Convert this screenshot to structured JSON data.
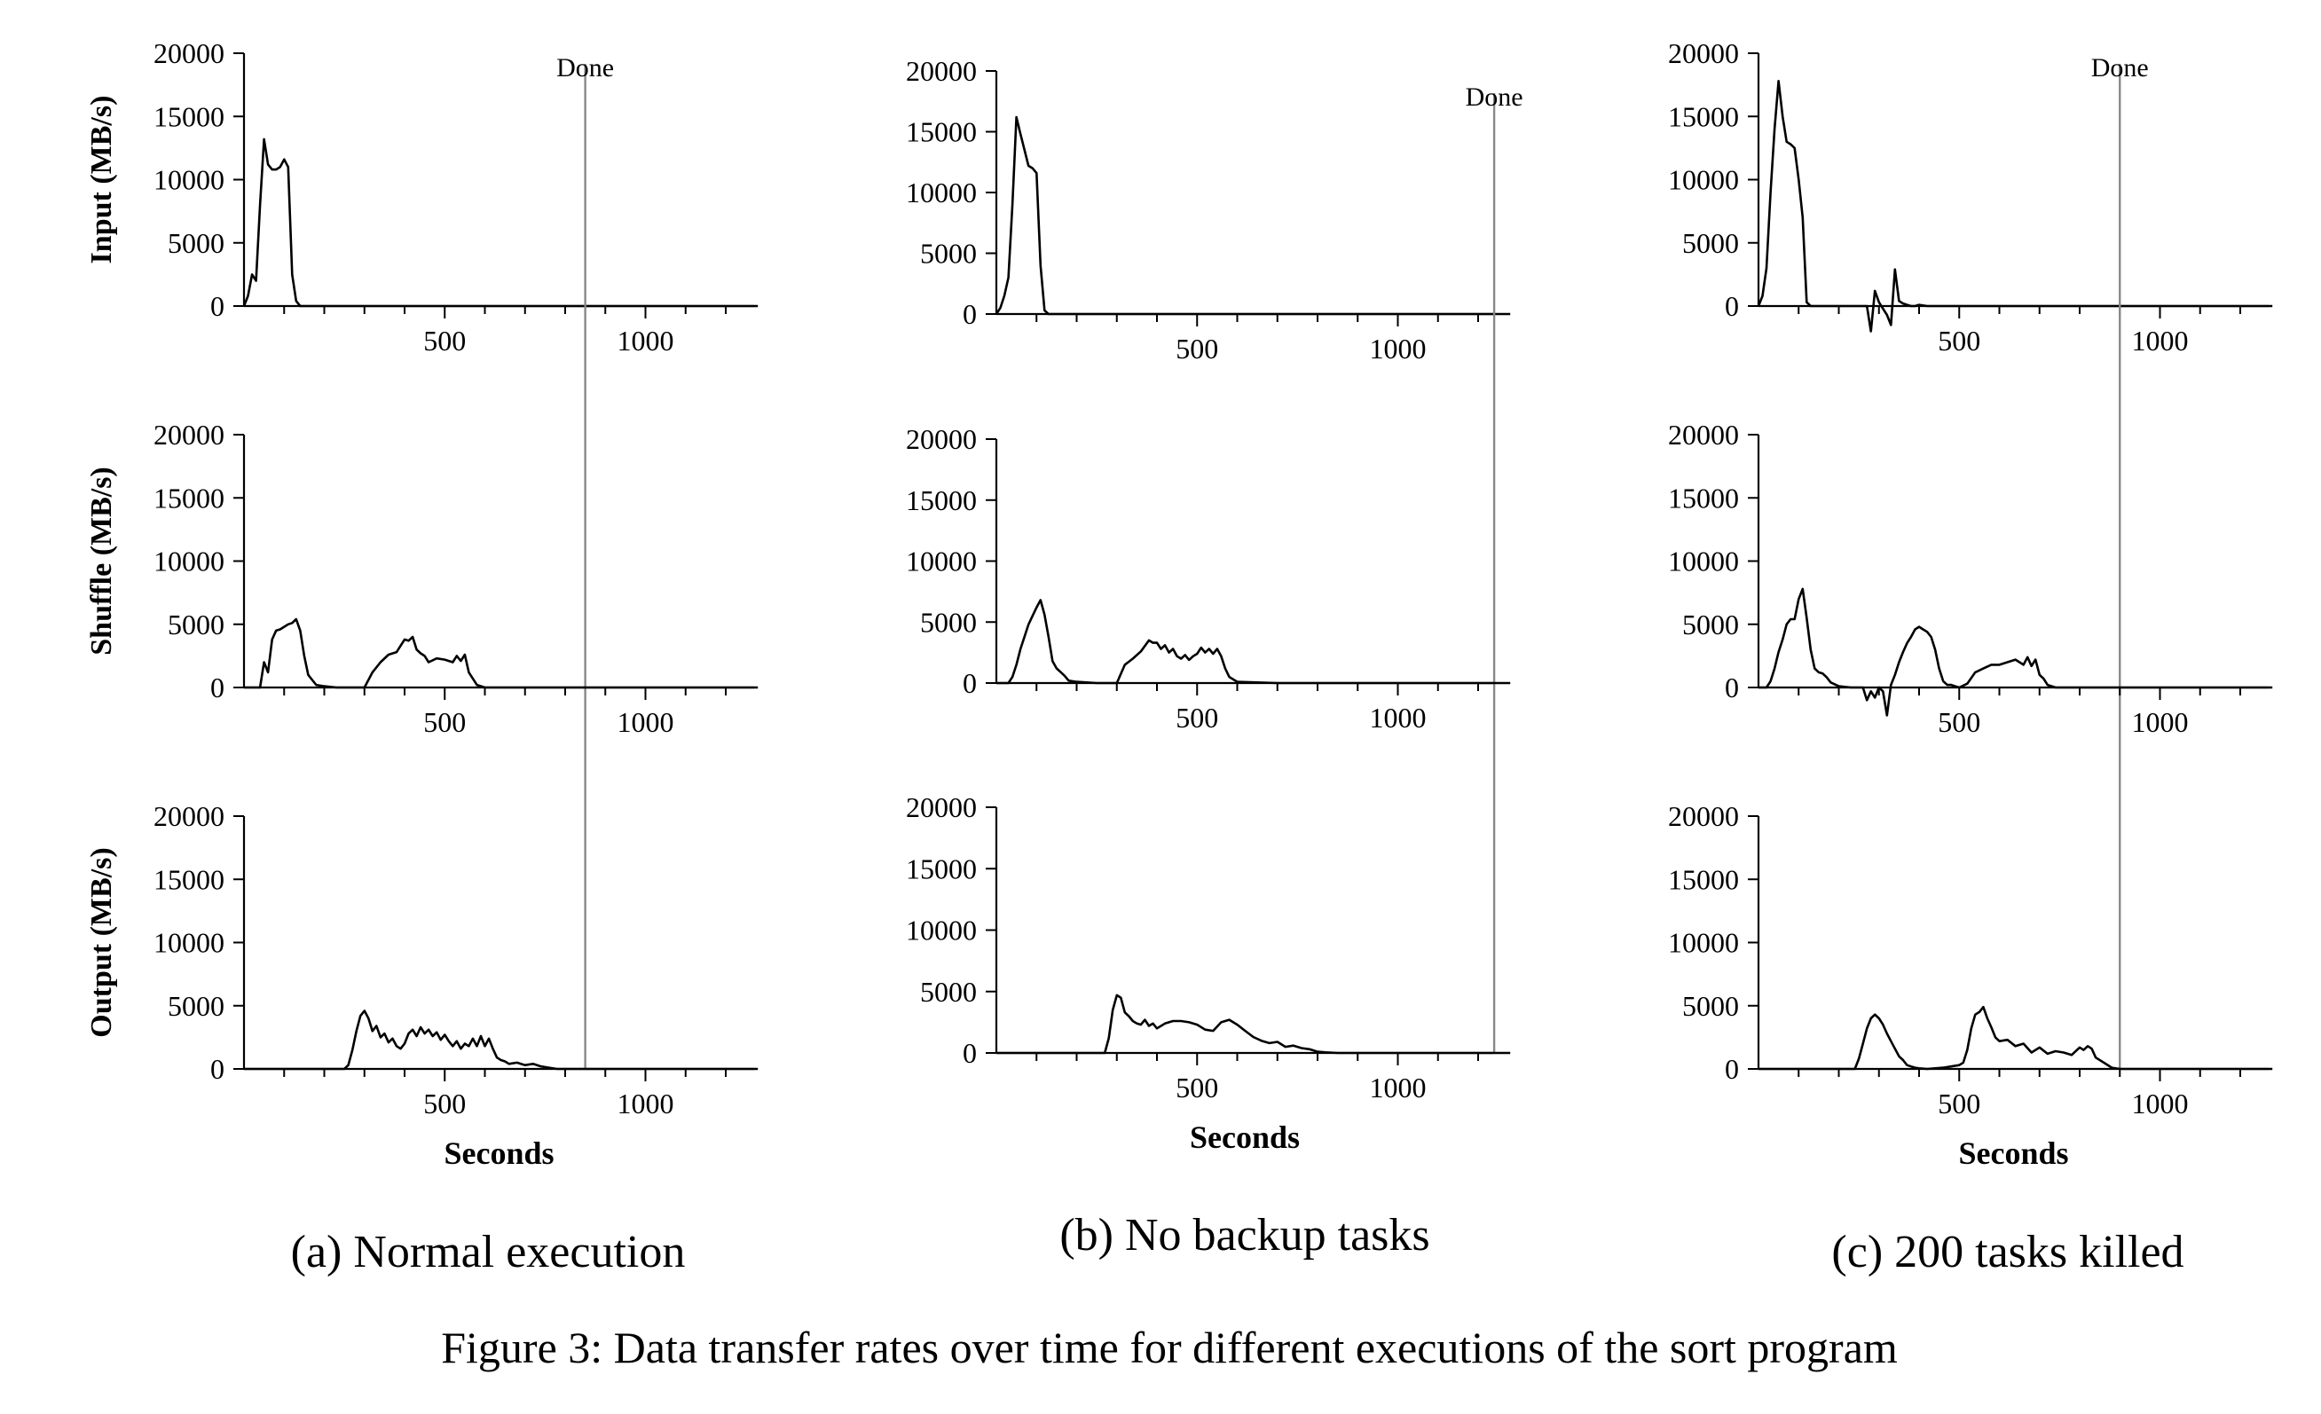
{
  "chart_data": [
    {
      "type": "line",
      "id": "a-input",
      "ylabel": "Input (MB/s)",
      "xlabel": "",
      "xlim": [
        0,
        1280
      ],
      "ylim": [
        0,
        20000
      ],
      "yticks": [
        0,
        5000,
        10000,
        15000,
        20000
      ],
      "xticks": [
        500,
        1000
      ],
      "done": 850,
      "done_label": "Done",
      "x": [
        0,
        10,
        20,
        30,
        40,
        50,
        60,
        70,
        80,
        90,
        100,
        110,
        120,
        130,
        140,
        150,
        170,
        200,
        300,
        500,
        800,
        1000,
        1280
      ],
      "values": [
        0,
        800,
        2500,
        2000,
        8000,
        13200,
        11200,
        10800,
        10800,
        11000,
        11600,
        11000,
        2500,
        400,
        0,
        0,
        0,
        0,
        0,
        0,
        0,
        0,
        0
      ]
    },
    {
      "type": "line",
      "id": "a-shuffle",
      "ylabel": "Shuffle (MB/s)",
      "xlabel": "",
      "xlim": [
        0,
        1280
      ],
      "ylim": [
        0,
        20000
      ],
      "yticks": [
        0,
        5000,
        10000,
        15000,
        20000
      ],
      "xticks": [
        500,
        1000
      ],
      "done": 850,
      "done_label": "",
      "x": [
        0,
        40,
        50,
        60,
        70,
        80,
        90,
        100,
        110,
        120,
        130,
        140,
        150,
        160,
        170,
        180,
        200,
        230,
        300,
        320,
        340,
        360,
        380,
        400,
        410,
        420,
        430,
        440,
        450,
        460,
        480,
        500,
        520,
        530,
        540,
        550,
        560,
        580,
        600,
        700,
        850,
        1000,
        1280
      ],
      "values": [
        0,
        0,
        2000,
        1200,
        3800,
        4500,
        4600,
        4800,
        5000,
        5100,
        5400,
        4500,
        2500,
        1000,
        600,
        200,
        100,
        0,
        0,
        1200,
        2000,
        2600,
        2800,
        3800,
        3700,
        4000,
        3000,
        2700,
        2500,
        2000,
        2300,
        2200,
        2000,
        2500,
        2100,
        2600,
        1200,
        200,
        0,
        0,
        0,
        0,
        0
      ]
    },
    {
      "type": "line",
      "id": "a-output",
      "ylabel": "Output (MB/s)",
      "xlabel": "Seconds",
      "xlim": [
        0,
        1280
      ],
      "ylim": [
        0,
        20000
      ],
      "yticks": [
        0,
        5000,
        10000,
        15000,
        20000
      ],
      "xticks": [
        500,
        1000
      ],
      "done": 850,
      "done_label": "",
      "x": [
        0,
        250,
        260,
        270,
        280,
        290,
        300,
        310,
        320,
        330,
        340,
        350,
        360,
        370,
        380,
        390,
        400,
        410,
        420,
        430,
        440,
        450,
        460,
        470,
        480,
        490,
        500,
        510,
        520,
        530,
        540,
        550,
        560,
        570,
        580,
        590,
        600,
        610,
        620,
        630,
        640,
        650,
        660,
        680,
        700,
        720,
        740,
        760,
        780,
        800,
        1000,
        1280
      ],
      "values": [
        0,
        0,
        300,
        1500,
        3000,
        4200,
        4600,
        4000,
        3000,
        3400,
        2500,
        2800,
        2100,
        2400,
        1800,
        1600,
        2000,
        2800,
        3100,
        2600,
        3300,
        2800,
        3100,
        2600,
        2900,
        2300,
        2700,
        2200,
        1800,
        2200,
        1600,
        2000,
        1800,
        2400,
        1800,
        2600,
        1800,
        2400,
        1600,
        900,
        700,
        600,
        400,
        500,
        300,
        400,
        200,
        100,
        0,
        0,
        0,
        0
      ]
    },
    {
      "type": "line",
      "id": "b-input",
      "ylabel": "",
      "xlabel": "",
      "xlim": [
        0,
        1280
      ],
      "ylim": [
        0,
        20000
      ],
      "yticks": [
        0,
        5000,
        10000,
        15000,
        20000
      ],
      "xticks": [
        500,
        1000
      ],
      "done": 1240,
      "done_label": "Done",
      "x": [
        0,
        10,
        20,
        30,
        40,
        50,
        60,
        70,
        80,
        90,
        100,
        110,
        120,
        130,
        150,
        300,
        600,
        1000,
        1280
      ],
      "values": [
        0,
        500,
        1500,
        3000,
        9000,
        16200,
        14800,
        13500,
        12200,
        12000,
        11600,
        4000,
        300,
        0,
        0,
        0,
        0,
        0,
        0
      ]
    },
    {
      "type": "line",
      "id": "b-shuffle",
      "ylabel": "",
      "xlabel": "",
      "xlim": [
        0,
        1280
      ],
      "ylim": [
        0,
        20000
      ],
      "yticks": [
        0,
        5000,
        10000,
        15000,
        20000
      ],
      "xticks": [
        500,
        1000
      ],
      "done": 1240,
      "done_label": "",
      "x": [
        0,
        30,
        40,
        50,
        60,
        70,
        80,
        90,
        100,
        110,
        120,
        130,
        140,
        150,
        160,
        170,
        180,
        200,
        250,
        300,
        320,
        340,
        360,
        380,
        390,
        400,
        410,
        420,
        430,
        440,
        450,
        460,
        470,
        480,
        490,
        500,
        510,
        520,
        530,
        540,
        550,
        560,
        570,
        580,
        600,
        700,
        1000,
        1280
      ],
      "values": [
        0,
        0,
        500,
        1500,
        2800,
        3800,
        4800,
        5500,
        6200,
        6800,
        5600,
        3800,
        1800,
        1200,
        900,
        600,
        200,
        100,
        0,
        0,
        1500,
        2000,
        2600,
        3500,
        3300,
        3300,
        2800,
        3100,
        2500,
        2800,
        2200,
        2000,
        2300,
        1900,
        2200,
        2400,
        2900,
        2500,
        2800,
        2400,
        2800,
        2200,
        1200,
        500,
        100,
        0,
        0,
        0
      ]
    },
    {
      "type": "line",
      "id": "b-output",
      "ylabel": "",
      "xlabel": "Seconds",
      "xlim": [
        0,
        1280
      ],
      "ylim": [
        0,
        20000
      ],
      "yticks": [
        0,
        5000,
        10000,
        15000,
        20000
      ],
      "xticks": [
        500,
        1000
      ],
      "done": 1240,
      "done_label": "",
      "x": [
        0,
        270,
        280,
        290,
        300,
        310,
        320,
        330,
        340,
        350,
        360,
        370,
        380,
        390,
        400,
        420,
        440,
        460,
        480,
        500,
        520,
        540,
        560,
        580,
        600,
        620,
        640,
        660,
        680,
        700,
        720,
        740,
        760,
        780,
        800,
        820,
        850,
        1000,
        1280
      ],
      "values": [
        0,
        0,
        1200,
        3500,
        4700,
        4500,
        3300,
        3000,
        2600,
        2400,
        2300,
        2700,
        2200,
        2400,
        2000,
        2400,
        2600,
        2600,
        2500,
        2300,
        1900,
        1800,
        2500,
        2700,
        2300,
        1800,
        1300,
        1000,
        800,
        900,
        500,
        600,
        400,
        300,
        100,
        50,
        0,
        0,
        0
      ]
    },
    {
      "type": "line",
      "id": "c-input",
      "ylabel": "",
      "xlabel": "",
      "xlim": [
        0,
        1280
      ],
      "ylim": [
        0,
        20000
      ],
      "yticks": [
        0,
        5000,
        10000,
        15000,
        20000
      ],
      "xticks": [
        500,
        1000
      ],
      "done": 900,
      "done_label": "Done",
      "x": [
        0,
        10,
        20,
        30,
        40,
        50,
        60,
        70,
        80,
        90,
        100,
        110,
        120,
        130,
        140,
        150,
        200,
        250,
        260,
        270,
        280,
        290,
        300,
        310,
        320,
        330,
        340,
        350,
        360,
        370,
        380,
        390,
        400,
        420,
        440,
        500,
        600,
        900,
        1280
      ],
      "values": [
        0,
        800,
        3000,
        9000,
        14000,
        17800,
        15000,
        13000,
        12800,
        12500,
        10000,
        7000,
        300,
        0,
        0,
        0,
        0,
        0,
        0,
        0,
        -2000,
        1200,
        300,
        -200,
        -700,
        -1500,
        2900,
        400,
        200,
        100,
        0,
        0,
        100,
        0,
        0,
        0,
        0,
        0,
        0
      ]
    },
    {
      "type": "line",
      "id": "c-shuffle",
      "ylabel": "",
      "xlabel": "",
      "xlim": [
        0,
        1280
      ],
      "ylim": [
        0,
        20000
      ],
      "yticks": [
        0,
        5000,
        10000,
        15000,
        20000
      ],
      "xticks": [
        500,
        1000
      ],
      "done": 900,
      "done_label": "",
      "x": [
        0,
        20,
        30,
        40,
        50,
        60,
        70,
        80,
        90,
        100,
        110,
        120,
        130,
        140,
        150,
        160,
        170,
        180,
        200,
        230,
        260,
        270,
        280,
        290,
        300,
        310,
        320,
        330,
        340,
        350,
        360,
        370,
        380,
        390,
        400,
        410,
        420,
        430,
        440,
        450,
        460,
        470,
        480,
        490,
        500,
        520,
        540,
        560,
        580,
        600,
        620,
        640,
        660,
        670,
        680,
        690,
        700,
        710,
        720,
        740,
        780,
        900,
        1000,
        1280
      ],
      "values": [
        0,
        0,
        500,
        1500,
        2800,
        3800,
        5000,
        5400,
        5400,
        7000,
        7800,
        5500,
        3000,
        1500,
        1200,
        1100,
        800,
        400,
        100,
        0,
        0,
        -1000,
        -300,
        -800,
        0,
        -300,
        -2200,
        200,
        1000,
        2000,
        2800,
        3500,
        4000,
        4600,
        4800,
        4600,
        4400,
        4000,
        3000,
        1500,
        500,
        200,
        200,
        100,
        0,
        300,
        1200,
        1500,
        1800,
        1800,
        2000,
        2200,
        1800,
        2400,
        1700,
        2200,
        1000,
        700,
        200,
        0,
        0,
        0,
        0,
        0
      ]
    },
    {
      "type": "line",
      "id": "c-output",
      "ylabel": "",
      "xlabel": "Seconds",
      "xlim": [
        0,
        1280
      ],
      "ylim": [
        0,
        20000
      ],
      "yticks": [
        0,
        5000,
        10000,
        15000,
        20000
      ],
      "xticks": [
        500,
        1000
      ],
      "done": 900,
      "done_label": "",
      "x": [
        0,
        240,
        250,
        260,
        270,
        280,
        290,
        300,
        310,
        320,
        330,
        340,
        350,
        360,
        370,
        380,
        390,
        400,
        420,
        440,
        460,
        480,
        500,
        510,
        520,
        530,
        540,
        550,
        560,
        570,
        580,
        590,
        600,
        620,
        640,
        660,
        680,
        700,
        720,
        740,
        760,
        780,
        800,
        810,
        820,
        830,
        840,
        860,
        880,
        900,
        1000,
        1280
      ],
      "values": [
        0,
        0,
        800,
        2000,
        3200,
        4000,
        4300,
        4000,
        3500,
        2800,
        2200,
        1600,
        1000,
        700,
        300,
        200,
        100,
        50,
        0,
        50,
        100,
        200,
        300,
        500,
        1500,
        3200,
        4300,
        4500,
        4900,
        4000,
        3300,
        2500,
        2200,
        2300,
        1800,
        2000,
        1300,
        1700,
        1200,
        1400,
        1300,
        1100,
        1700,
        1500,
        1800,
        1600,
        900,
        500,
        100,
        0,
        0,
        0
      ]
    }
  ],
  "captions": {
    "a": "(a) Normal execution",
    "b": "(b) No backup tasks",
    "c": "(c) 200 tasks killed"
  },
  "figure_caption": "Figure 3: Data transfer rates over time for different executions of the sort program"
}
